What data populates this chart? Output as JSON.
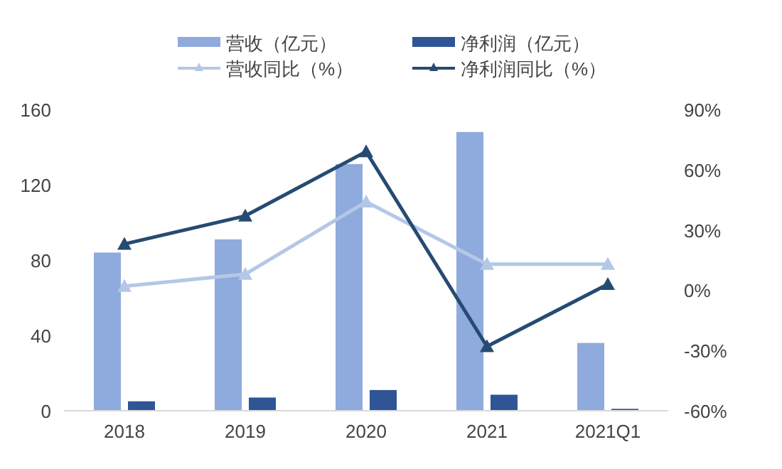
{
  "chart_data": {
    "type": "bar",
    "categories": [
      "2018",
      "2019",
      "2020",
      "2021",
      "2021Q1"
    ],
    "series": [
      {
        "name": "营收（亿元）",
        "color": "#8faadc",
        "values": [
          84,
          91,
          131,
          148,
          36
        ]
      },
      {
        "name": "净利润（亿元）",
        "color": "#2f5597",
        "values": [
          5,
          7,
          11,
          8.5,
          1
        ]
      },
      {
        "name": "营收同比（%）",
        "type": "line",
        "axis": "y2",
        "color": "#b4c7e7",
        "values": [
          2,
          8,
          44,
          13,
          13
        ]
      },
      {
        "name": "净利润同比（%）",
        "type": "line",
        "axis": "y2",
        "color": "#264b73",
        "values": [
          23,
          37,
          69,
          -28,
          3
        ]
      }
    ],
    "ylim": [
      0,
      160
    ],
    "yticks": [
      0,
      40,
      80,
      120,
      160
    ],
    "y2lim": [
      -60,
      90
    ],
    "y2ticks": [
      {
        "value": -60,
        "label": "-60%"
      },
      {
        "value": -30,
        "label": "-30%"
      },
      {
        "value": 0,
        "label": "0%"
      },
      {
        "value": 30,
        "label": "30%"
      },
      {
        "value": 60,
        "label": "60%"
      },
      {
        "value": 90,
        "label": "90%"
      }
    ],
    "marker": "triangle",
    "legend": "top",
    "grid": false
  }
}
